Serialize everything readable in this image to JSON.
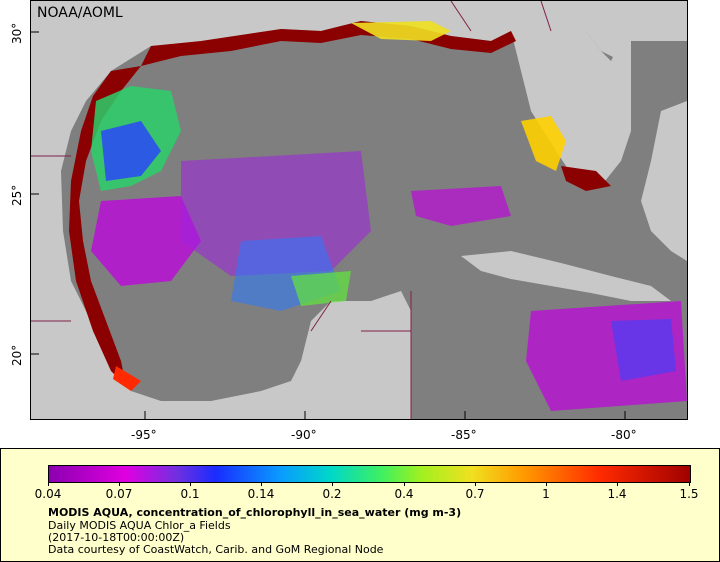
{
  "credit": "NOAA/AOML",
  "lon_labels": [
    "-95°",
    "-90°",
    "-85°",
    "-80°"
  ],
  "lat_labels": [
    "30°",
    "25°",
    "20°"
  ],
  "colorbar": {
    "ticks": [
      "0.04",
      "0.07",
      "0.1",
      "0.14",
      "0.2",
      "0.4",
      "0.7",
      "1",
      "1.4",
      "1.5"
    ],
    "variable": "MODIS AQUA, concentration_of_chlorophyll_in_sea_water (mg m-3)",
    "dataset": "Daily MODIS AQUA Chlor_a Fields",
    "time": "(2017-10-18T00:00:00Z)",
    "source": "Data courtesy of CoastWatch, Carib. and GoM Regional Node"
  },
  "colors": {
    "land": "#c8c8c8",
    "no_data": "#7f7f7f",
    "legend_bg": "#ffffcc",
    "border_lines": "#80204a",
    "high_chl": "#8b0000",
    "low_chl": "#c000e0"
  }
}
